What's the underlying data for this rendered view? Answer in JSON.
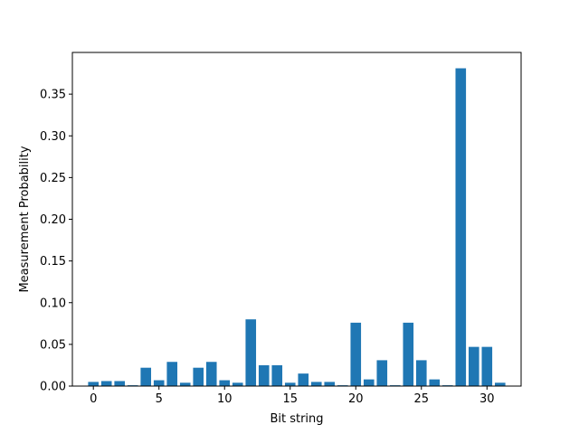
{
  "chart_data": {
    "type": "bar",
    "title": "",
    "xlabel": "Bit string",
    "ylabel": "Measurement Probability",
    "x": [
      0,
      1,
      2,
      3,
      4,
      5,
      6,
      7,
      8,
      9,
      10,
      11,
      12,
      13,
      14,
      15,
      16,
      17,
      18,
      19,
      20,
      21,
      22,
      23,
      24,
      25,
      26,
      27,
      28,
      29,
      30,
      31
    ],
    "values": [
      0.005,
      0.006,
      0.006,
      0.001,
      0.022,
      0.007,
      0.029,
      0.004,
      0.022,
      0.029,
      0.007,
      0.004,
      0.08,
      0.025,
      0.025,
      0.004,
      0.015,
      0.005,
      0.005,
      0.001,
      0.076,
      0.008,
      0.031,
      0.001,
      0.076,
      0.031,
      0.008,
      0.001,
      0.381,
      0.047,
      0.047,
      0.004
    ],
    "xlim": [
      -1.6,
      32.6
    ],
    "ylim": [
      0,
      0.4
    ],
    "xticks": [
      0,
      5,
      10,
      15,
      20,
      25,
      30
    ],
    "xtick_labels": [
      "0",
      "5",
      "10",
      "15",
      "20",
      "25",
      "30"
    ],
    "yticks": [
      0.0,
      0.05,
      0.1,
      0.15,
      0.2,
      0.25,
      0.3,
      0.35
    ],
    "ytick_labels": [
      "0.00",
      "0.05",
      "0.10",
      "0.15",
      "0.20",
      "0.25",
      "0.30",
      "0.35"
    ],
    "grid": false,
    "legend": "none",
    "bar_color": "#1f77b4"
  }
}
